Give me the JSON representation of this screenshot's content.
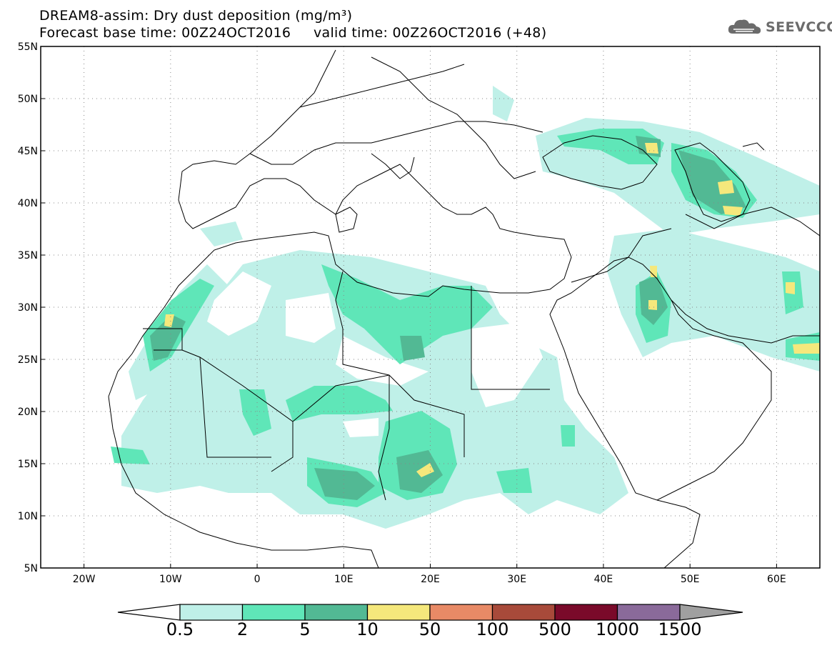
{
  "title": {
    "line1": "DREAM8-assim: Dry dust deposition (mg/m³)",
    "line2": "Forecast base time: 00Z24OCT2016     valid time: 00Z26OCT2016 (+48)"
  },
  "logo": {
    "icon": "cloud-logo-icon",
    "text": "SEEVCCC"
  },
  "map": {
    "lon_range": [
      -25,
      65
    ],
    "lat_range": [
      5,
      55
    ],
    "lat_ticks": [
      "55N",
      "50N",
      "45N",
      "40N",
      "35N",
      "30N",
      "25N",
      "20N",
      "15N",
      "10N",
      "5N"
    ],
    "lon_ticks": [
      "20W",
      "10W",
      "0",
      "10E",
      "20E",
      "30E",
      "40E",
      "50E",
      "60E"
    ],
    "grid": "dotted"
  },
  "colorbar": {
    "labels": [
      "0.5",
      "2",
      "5",
      "10",
      "50",
      "100",
      "500",
      "1000",
      "1500"
    ],
    "colors": [
      "#ffffff",
      "#bff0e8",
      "#5fe6b8",
      "#52b994",
      "#f5e87c",
      "#e88a66",
      "#a84a3a",
      "#7a0a2a",
      "#8a6a9a",
      "#a0a0a0"
    ]
  }
}
